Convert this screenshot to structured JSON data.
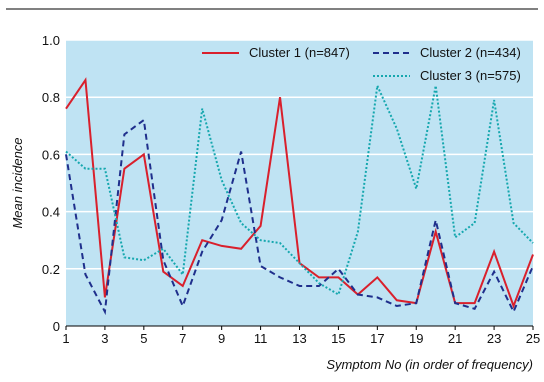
{
  "chart_data": {
    "type": "line",
    "title": "",
    "xlabel": "Symptom No (in order of frequency)",
    "ylabel": "Mean incidence",
    "xlim": [
      1,
      25
    ],
    "ylim": [
      0,
      1.0
    ],
    "x": [
      1,
      2,
      3,
      4,
      5,
      6,
      7,
      8,
      9,
      10,
      11,
      12,
      13,
      14,
      15,
      16,
      17,
      18,
      19,
      20,
      21,
      22,
      23,
      24,
      25
    ],
    "x_ticks": [
      "1",
      "3",
      "5",
      "7",
      "9",
      "11",
      "13",
      "15",
      "17",
      "19",
      "21",
      "23",
      "25"
    ],
    "x_tick_values": [
      1,
      3,
      5,
      7,
      9,
      11,
      13,
      15,
      17,
      19,
      21,
      23,
      25
    ],
    "y_ticks": [
      "0",
      "0.2",
      "0.4",
      "0.6",
      "0.8",
      "1.0"
    ],
    "y_tick_values": [
      0,
      0.2,
      0.4,
      0.6,
      0.8,
      1.0
    ],
    "grid": "horizontal",
    "legend_placement": "top-right",
    "background_color": "#bfe3f3",
    "series": [
      {
        "name": "Cluster 1 (n=847)",
        "color": "#d9202c",
        "style": "solid",
        "values": [
          0.76,
          0.86,
          0.1,
          0.55,
          0.6,
          0.19,
          0.14,
          0.3,
          0.28,
          0.27,
          0.35,
          0.8,
          0.22,
          0.17,
          0.17,
          0.11,
          0.17,
          0.09,
          0.08,
          0.33,
          0.08,
          0.08,
          0.26,
          0.07,
          0.25
        ]
      },
      {
        "name": "Cluster 2 (n=434)",
        "color": "#1f2f8c",
        "style": "dashed",
        "values": [
          0.6,
          0.18,
          0.05,
          0.67,
          0.72,
          0.23,
          0.07,
          0.26,
          0.37,
          0.61,
          0.21,
          0.17,
          0.14,
          0.14,
          0.2,
          0.11,
          0.1,
          0.07,
          0.08,
          0.37,
          0.08,
          0.06,
          0.19,
          0.05,
          0.21
        ]
      },
      {
        "name": "Cluster 3 (n=575)",
        "color": "#15a7ae",
        "style": "dotted",
        "values": [
          0.61,
          0.55,
          0.55,
          0.24,
          0.23,
          0.27,
          0.18,
          0.76,
          0.51,
          0.36,
          0.3,
          0.29,
          0.22,
          0.15,
          0.11,
          0.33,
          0.84,
          0.69,
          0.48,
          0.84,
          0.31,
          0.36,
          0.79,
          0.36,
          0.29
        ]
      }
    ]
  }
}
